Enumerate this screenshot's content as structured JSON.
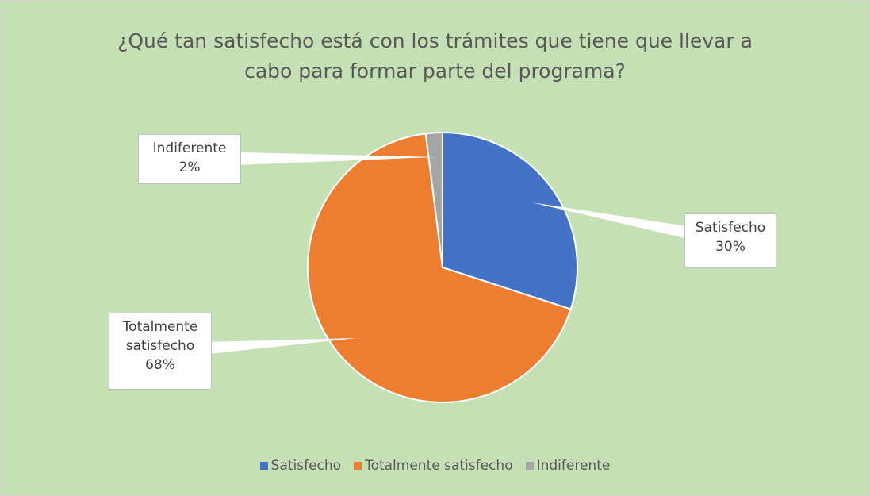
{
  "chart_data": {
    "type": "pie",
    "title": "¿Qué tan satisfecho está con los trámites que tiene que llevar a cabo para formar parte del programa?",
    "categories": [
      "Satisfecho",
      "Totalmente satisfecho",
      "Indiferente"
    ],
    "values": [
      30,
      68,
      2
    ],
    "value_labels": [
      "30%",
      "68%",
      "2%"
    ],
    "colors": [
      "#4472c4",
      "#ed7d31",
      "#a5a5a5"
    ],
    "legend": "bottom"
  }
}
